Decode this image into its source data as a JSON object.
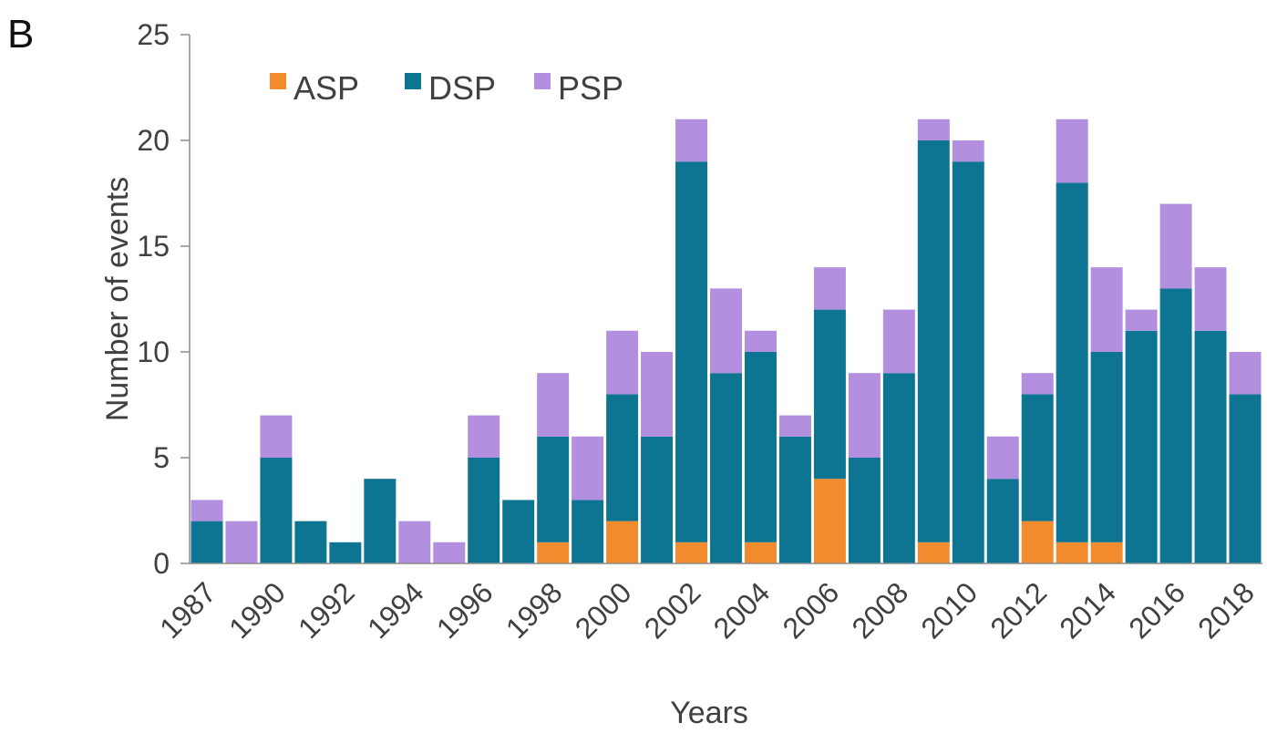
{
  "panel_label": "B",
  "chart_data": {
    "type": "bar",
    "stacked": true,
    "categories": [
      "1987",
      "1988",
      "1990",
      "1991",
      "1992",
      "1993",
      "1994",
      "1995",
      "1996",
      "1997",
      "1998",
      "1999",
      "2000",
      "2001",
      "2002",
      "2003",
      "2004",
      "2005",
      "2006",
      "2007",
      "2008",
      "2009",
      "2010",
      "2011",
      "2012",
      "2013",
      "2014",
      "2015",
      "2016",
      "2017",
      "2018"
    ],
    "x_tick_labels": [
      "1987",
      "1990",
      "1992",
      "1994",
      "1996",
      "1998",
      "2000",
      "2002",
      "2004",
      "2006",
      "2008",
      "2010",
      "2012",
      "2014",
      "2016",
      "2018"
    ],
    "series": [
      {
        "name": "ASP",
        "color": "#f28a2e",
        "values": [
          0,
          0,
          0,
          0,
          0,
          0,
          0,
          0,
          0,
          0,
          1,
          0,
          2,
          0,
          1,
          0,
          1,
          0,
          4,
          0,
          0,
          1,
          0,
          0,
          2,
          1,
          1,
          0,
          0,
          0,
          0
        ]
      },
      {
        "name": "DSP",
        "color": "#0d7591",
        "values": [
          2,
          0,
          5,
          2,
          1,
          4,
          0,
          0,
          5,
          3,
          5,
          3,
          6,
          6,
          18,
          9,
          9,
          6,
          8,
          5,
          9,
          19,
          19,
          4,
          6,
          17,
          9,
          11,
          13,
          11,
          8
        ]
      },
      {
        "name": "PSP",
        "color": "#b38fe0",
        "values": [
          1,
          2,
          2,
          0,
          0,
          0,
          2,
          1,
          2,
          0,
          3,
          3,
          3,
          4,
          2,
          4,
          1,
          1,
          2,
          4,
          3,
          1,
          1,
          2,
          1,
          3,
          4,
          1,
          4,
          3,
          2
        ]
      }
    ],
    "xlabel": "Years",
    "ylabel": "Number of events",
    "ylim": [
      0,
      25
    ],
    "yticks": [
      0,
      5,
      10,
      15,
      20,
      25
    ],
    "legend_position": "top-left",
    "grid": false
  }
}
